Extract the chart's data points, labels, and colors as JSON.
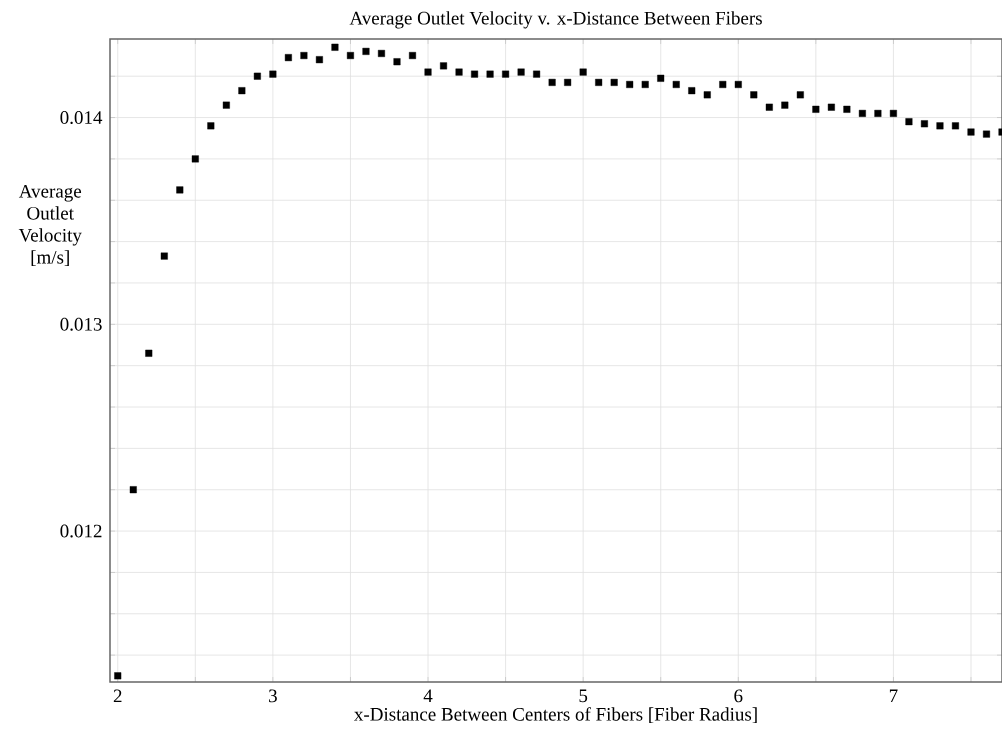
{
  "chart_data": {
    "type": "scatter",
    "title": "Average Outlet Velocity v. x-Distance Between Fibers",
    "xlabel": "x-Distance Between Centers of Fibers [Fiber Radius]",
    "ylabel": "Average Outlet Velocity [m/s]",
    "x": [
      2.0,
      2.1,
      2.2,
      2.3,
      2.4,
      2.5,
      2.6,
      2.7,
      2.8,
      2.9,
      3.0,
      3.1,
      3.2,
      3.3,
      3.4,
      3.5,
      3.6,
      3.7,
      3.8,
      3.9,
      4.0,
      4.1,
      4.2,
      4.3,
      4.4,
      4.5,
      4.6,
      4.7,
      4.8,
      4.9,
      5.0,
      5.1,
      5.2,
      5.3,
      5.4,
      5.5,
      5.6,
      5.7,
      5.8,
      5.9,
      6.0,
      6.1,
      6.2,
      6.3,
      6.4,
      6.5,
      6.6,
      6.7,
      6.8,
      6.9,
      7.0,
      7.1,
      7.2,
      7.3,
      7.4,
      7.5,
      7.6,
      7.7
    ],
    "series": [
      {
        "color": "#000000",
        "values": [
          0.0113,
          0.0122,
          0.01286,
          0.01333,
          0.01365,
          0.0138,
          0.01396,
          0.01406,
          0.01413,
          0.0142,
          0.01421,
          0.01429,
          0.0143,
          0.01428,
          0.01434,
          0.0143,
          0.01432,
          0.01431,
          0.01427,
          0.0143,
          0.01422,
          0.01425,
          0.01422,
          0.01421,
          0.01421,
          0.01421,
          0.01422,
          0.01421,
          0.01417,
          0.01417,
          0.01422,
          0.01417,
          0.01417,
          0.01416,
          0.01416,
          0.01419,
          0.01416,
          0.01413,
          0.01411,
          0.01416,
          0.01416,
          0.01411,
          0.01405,
          0.01406,
          0.01411,
          0.01404,
          0.01405,
          0.01404,
          0.01402,
          0.01402,
          0.01402,
          0.01398,
          0.01397,
          0.01396,
          0.01396,
          0.01393,
          0.01392,
          0.01393
        ]
      }
    ],
    "xlim": [
      1.95,
      7.7
    ],
    "xticks": [
      2,
      {
        "value": 2.5,
        "label": null
      },
      3,
      {
        "value": 3.5,
        "label": null
      },
      4,
      {
        "value": 4.5,
        "label": null
      },
      5,
      {
        "value": 5.5,
        "label": null
      },
      6,
      {
        "value": 6.5,
        "label": null
      },
      7,
      {
        "value": 7.5,
        "label": null
      }
    ],
    "ylim": [
      0.01127,
      0.01438
    ],
    "yticks": [
      {
        "value": 0.0114,
        "label": null
      },
      {
        "value": 0.0116,
        "label": null
      },
      {
        "value": 0.0118,
        "label": null
      },
      0.012,
      {
        "value": 0.0122,
        "label": null
      },
      {
        "value": 0.0124,
        "label": null
      },
      {
        "value": 0.0126,
        "label": null
      },
      {
        "value": 0.0128,
        "label": null
      },
      0.013,
      {
        "value": 0.0132,
        "label": null
      },
      {
        "value": 0.0134,
        "label": null
      },
      {
        "value": 0.0136,
        "label": null
      },
      {
        "value": 0.0138,
        "label": null
      },
      0.014,
      {
        "value": 0.0142,
        "label": null
      }
    ],
    "grid": true,
    "marker": "square"
  }
}
